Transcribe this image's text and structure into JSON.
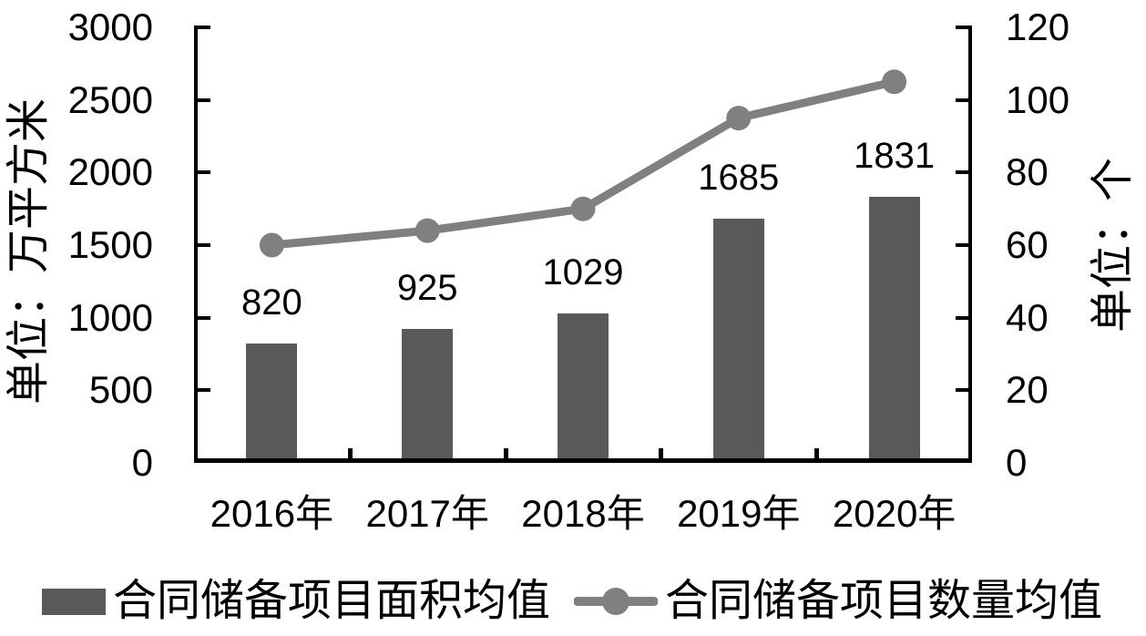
{
  "chart_data": {
    "type": "combo-bar-line",
    "categories": [
      "2016年",
      "2017年",
      "2018年",
      "2019年",
      "2020年"
    ],
    "series": [
      {
        "name": "合同储备项目面积均值",
        "type": "bar",
        "axis": "left",
        "color": "#595959",
        "values": [
          820,
          925,
          1029,
          1685,
          1831
        ]
      },
      {
        "name": "合同储备项目数量均值",
        "type": "line",
        "axis": "right",
        "color": "#808080",
        "values": [
          60,
          64,
          70,
          95,
          105
        ],
        "values_estimated": true
      }
    ],
    "left_axis": {
      "title": "单位：万平方米",
      "min": 0,
      "max": 3000,
      "step": 500,
      "ticks": [
        "3000",
        "2500",
        "2000",
        "1500",
        "1000",
        "500",
        "0"
      ]
    },
    "right_axis": {
      "title": "单位：个",
      "min": 0,
      "max": 120,
      "step": 20,
      "ticks": [
        "120",
        "100",
        "80",
        "60",
        "40",
        "20",
        "0"
      ]
    },
    "grid": false,
    "legend_position": "bottom",
    "background_color": "#ffffff",
    "axis_color": "#000000",
    "text_color": "#000000"
  }
}
